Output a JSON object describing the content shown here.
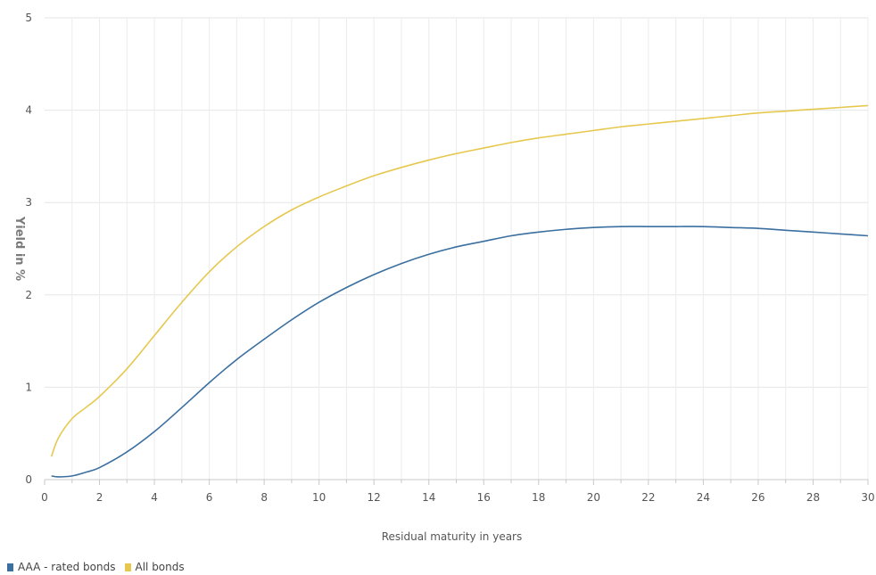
{
  "chart_data": {
    "type": "line",
    "title": "",
    "xlabel": "Residual maturity in years",
    "ylabel": "Yield in %",
    "xlim": [
      0,
      30
    ],
    "ylim": [
      0,
      5
    ],
    "x_ticks": [
      0,
      2,
      4,
      6,
      8,
      10,
      12,
      14,
      16,
      18,
      20,
      22,
      24,
      26,
      28,
      30
    ],
    "x_tick_labels": [
      "0",
      "2",
      "4",
      "6",
      "8",
      "10",
      "12",
      "14",
      "16",
      "18",
      "20",
      "22",
      "24",
      "26",
      "28",
      "30"
    ],
    "y_ticks": [
      0,
      1,
      2,
      3,
      4,
      5
    ],
    "y_tick_labels": [
      "0",
      "1",
      "2",
      "3",
      "4",
      "5"
    ],
    "grid": true,
    "legend_position": "bottom-left",
    "series": [
      {
        "name": "AAA - rated bonds",
        "color": "#3a6f9f",
        "x": [
          0.25,
          0.5,
          1,
          1.5,
          2,
          3,
          4,
          5,
          6,
          7,
          8,
          9,
          10,
          11,
          12,
          13,
          14,
          15,
          16,
          17,
          18,
          19,
          20,
          21,
          22,
          23,
          24,
          25,
          26,
          27,
          28,
          29,
          30
        ],
        "y": [
          0.04,
          0.03,
          0.04,
          0.08,
          0.13,
          0.3,
          0.52,
          0.78,
          1.05,
          1.3,
          1.52,
          1.73,
          1.92,
          2.08,
          2.22,
          2.34,
          2.44,
          2.52,
          2.58,
          2.64,
          2.68,
          2.71,
          2.73,
          2.74,
          2.74,
          2.74,
          2.74,
          2.73,
          2.72,
          2.7,
          2.68,
          2.66,
          2.64
        ]
      },
      {
        "name": "All bonds",
        "color": "#e6c84f",
        "x": [
          0.25,
          0.5,
          1,
          1.5,
          2,
          3,
          4,
          5,
          6,
          7,
          8,
          9,
          10,
          11,
          12,
          13,
          14,
          15,
          16,
          17,
          18,
          19,
          20,
          21,
          22,
          23,
          24,
          25,
          26,
          27,
          28,
          29,
          30
        ],
        "y": [
          0.25,
          0.45,
          0.66,
          0.78,
          0.9,
          1.2,
          1.56,
          1.92,
          2.25,
          2.52,
          2.74,
          2.92,
          3.06,
          3.18,
          3.29,
          3.38,
          3.46,
          3.53,
          3.59,
          3.65,
          3.7,
          3.74,
          3.78,
          3.82,
          3.85,
          3.88,
          3.91,
          3.94,
          3.97,
          3.99,
          4.01,
          4.03,
          4.05
        ]
      }
    ]
  }
}
